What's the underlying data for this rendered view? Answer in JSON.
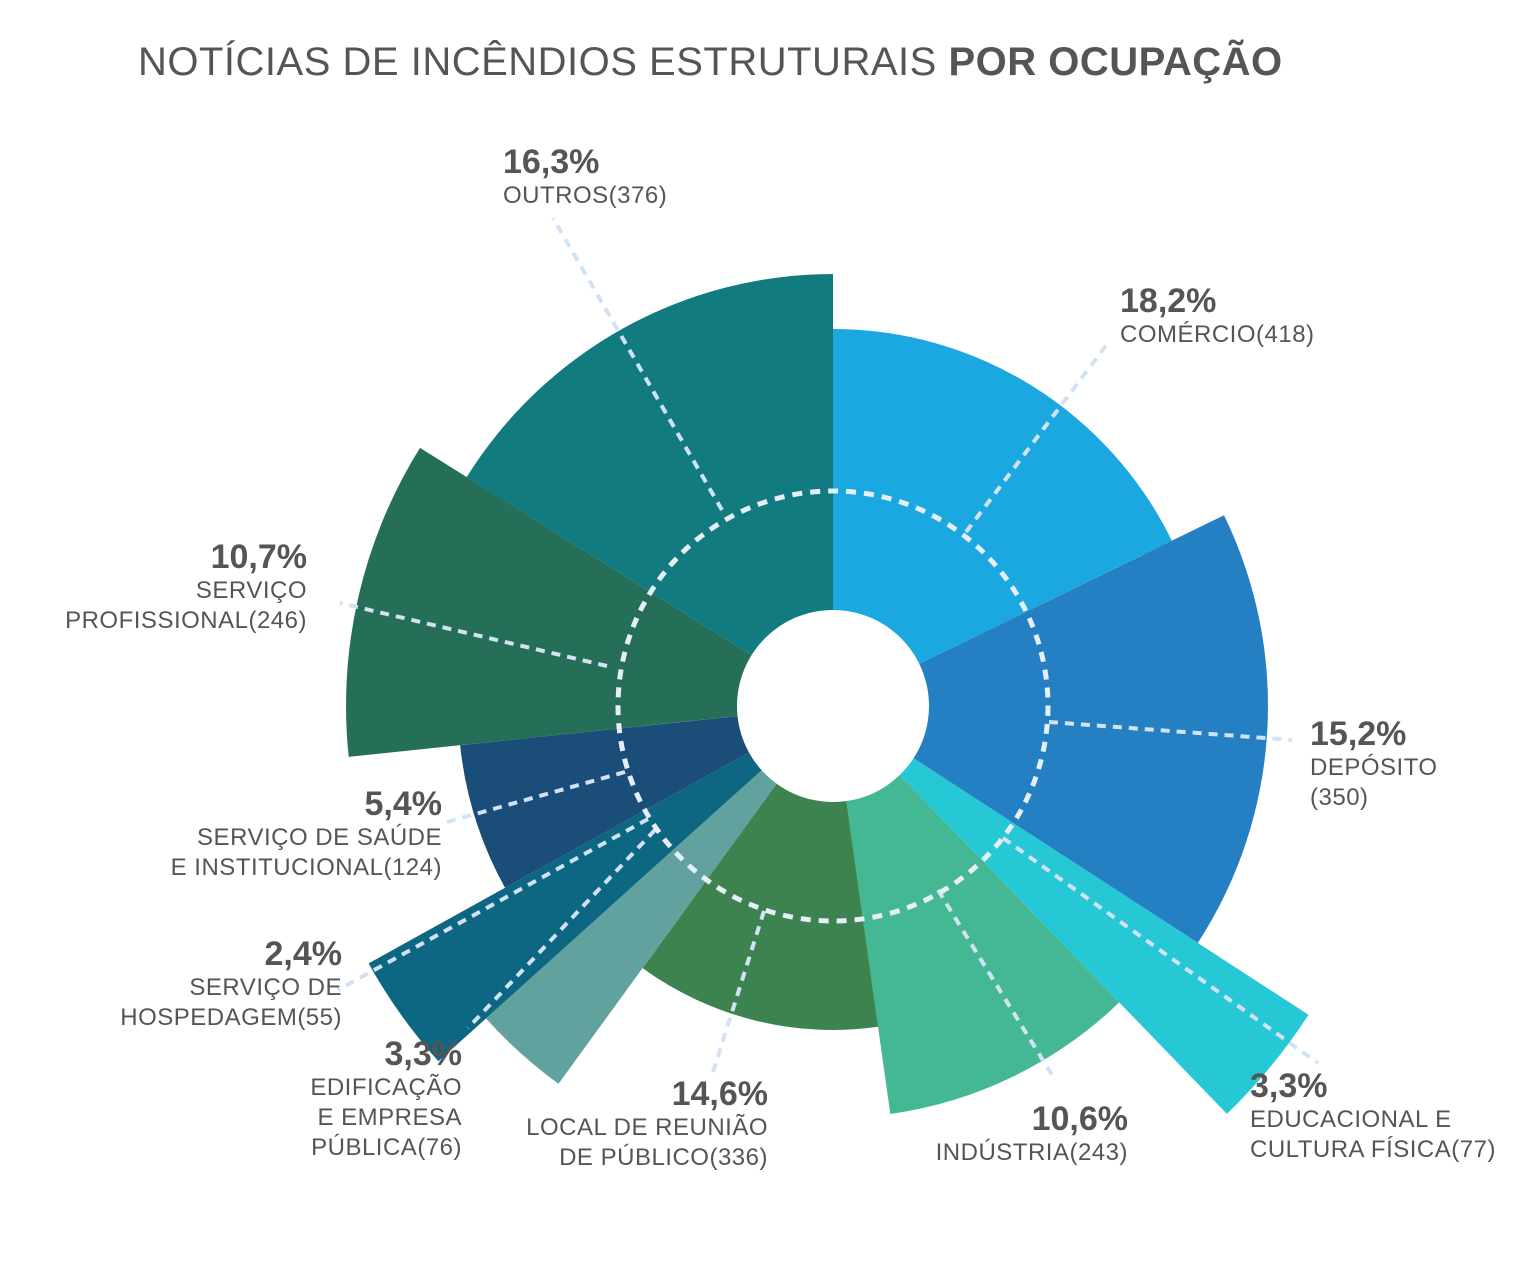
{
  "title": {
    "regular": "NOTÍCIAS DE INCÊNDIOS ESTRUTURAIS",
    "bold": "POR OCUPAÇÃO"
  },
  "chart_data": {
    "type": "pie",
    "variant": "polar-area (nightingale rose)",
    "title": "NOTÍCIAS DE INCÊNDIOS ESTRUTURAIS POR OCUPAÇÃO",
    "slices": [
      {
        "key": "comercio",
        "pct_label": "18,2%",
        "name_lines": [
          "COMÉRCIO(418)"
        ],
        "percent": 18.2,
        "count": 418,
        "color": "#1ba7df"
      },
      {
        "key": "deposito",
        "pct_label": "15,2%",
        "name_lines": [
          "DEPÓSITO",
          "(350)"
        ],
        "percent": 15.2,
        "count": 350,
        "color": "#2580c3"
      },
      {
        "key": "educacional",
        "pct_label": "3,3%",
        "name_lines": [
          "EDUCACIONAL E",
          "CULTURA FÍSICA(77)"
        ],
        "percent": 3.3,
        "count": 77,
        "color": "#27c8d6"
      },
      {
        "key": "industria",
        "pct_label": "10,6%",
        "name_lines": [
          "INDÚSTRIA(243)"
        ],
        "percent": 10.6,
        "count": 243,
        "color": "#44b895"
      },
      {
        "key": "local-reuniao",
        "pct_label": "14,6%",
        "name_lines": [
          "LOCAL DE REUNIÃO",
          "DE PÚBLICO(336)"
        ],
        "percent": 14.6,
        "count": 336,
        "color": "#3d8350"
      },
      {
        "key": "edificacao-publica",
        "pct_label": "3,3%",
        "name_lines": [
          "EDIFICAÇÃO",
          "E EMPRESA",
          "PÚBLICA(76)"
        ],
        "percent": 3.3,
        "count": 76,
        "color": "#62a29e"
      },
      {
        "key": "hospedagem",
        "pct_label": "2,4%",
        "name_lines": [
          "SERVIÇO DE",
          "HOSPEDAGEM(55)"
        ],
        "percent": 2.4,
        "count": 55,
        "color": "#0d6682"
      },
      {
        "key": "saude",
        "pct_label": "5,4%",
        "name_lines": [
          "SERVIÇO DE SAÚDE",
          "E  INSTITUCIONAL(124)"
        ],
        "percent": 5.4,
        "count": 124,
        "color": "#1a4d78"
      },
      {
        "key": "profissional",
        "pct_label": "10,7%",
        "name_lines": [
          "SERVIÇO",
          "PROFISSIONAL(246)"
        ],
        "percent": 10.7,
        "count": 246,
        "color": "#256e58"
      },
      {
        "key": "outros",
        "pct_label": "16,3%",
        "name_lines": [
          "OUTROS(376)"
        ],
        "percent": 16.3,
        "count": 376,
        "color": "#127b80"
      }
    ]
  }
}
